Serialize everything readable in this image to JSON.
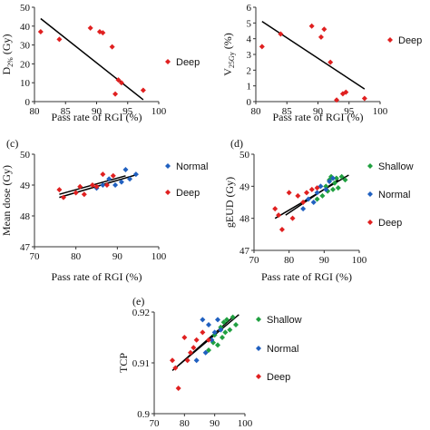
{
  "chart_data": [
    {
      "id": "a",
      "panel_label": "",
      "type": "scatter",
      "xlabel": "Pass rate of RGI (%)",
      "ylabel": "D",
      "ylabel_sub": "2%",
      "ylabel_unit": " (Gy)",
      "xlim": [
        80,
        100
      ],
      "ylim": [
        0,
        50
      ],
      "xticks": [
        80,
        85,
        90,
        95,
        100
      ],
      "yticks": [
        0,
        10,
        20,
        30,
        40,
        50
      ],
      "tick_labels_x": [
        "80",
        "85",
        "90",
        "95",
        "100"
      ],
      "tick_labels_y": [
        "0",
        "10",
        "20",
        "30",
        "40",
        "50"
      ],
      "series": [
        {
          "name": "Deep",
          "color": "#e02020",
          "x": [
            81,
            84,
            89,
            90.5,
            91,
            92.5,
            93,
            93.5,
            94,
            97.5
          ],
          "y": [
            37,
            33,
            39,
            37,
            36.5,
            29,
            4,
            11.5,
            10,
            6
          ]
        }
      ],
      "trendlines": [
        {
          "x": [
            81,
            97.5
          ],
          "y": [
            44,
            1
          ]
        }
      ],
      "legend_position": "right"
    },
    {
      "id": "b",
      "panel_label": "",
      "type": "scatter",
      "xlabel": "Pass rate of RGI (%)",
      "ylabel": "V",
      "ylabel_sub": "25Gy",
      "ylabel_unit": " (%)",
      "xlim": [
        80,
        100
      ],
      "ylim": [
        0,
        6
      ],
      "xticks": [
        80,
        85,
        90,
        95,
        100
      ],
      "yticks": [
        0,
        1,
        2,
        3,
        4,
        5,
        6
      ],
      "tick_labels_x": [
        "80",
        "85",
        "90",
        "95",
        "100"
      ],
      "tick_labels_y": [
        "0",
        "1",
        "2",
        "3",
        "4",
        "5",
        "6"
      ],
      "series": [
        {
          "name": "Deep",
          "color": "#e02020",
          "x": [
            81,
            84,
            89,
            90.5,
            91,
            92,
            93,
            94,
            94.5,
            97.5
          ],
          "y": [
            3.5,
            4.3,
            4.8,
            4.1,
            4.6,
            2.5,
            0.1,
            0.5,
            0.6,
            0.2
          ]
        }
      ],
      "trendlines": [
        {
          "x": [
            81,
            97.5
          ],
          "y": [
            5.1,
            0.8
          ]
        }
      ],
      "legend_position": "right"
    },
    {
      "id": "c",
      "panel_label": "(c)",
      "type": "scatter",
      "xlabel": "Pass rate of RGI (%)",
      "ylabel": "Mean dose (Gy)",
      "ylabel_sub": "",
      "ylabel_unit": "",
      "xlim": [
        70,
        100
      ],
      "ylim": [
        47,
        50
      ],
      "xticks": [
        70,
        80,
        90,
        100
      ],
      "yticks": [
        47,
        48,
        49,
        50
      ],
      "tick_labels_x": [
        "70",
        "80",
        "90",
        "100"
      ],
      "tick_labels_y": [
        "47",
        "48",
        "49",
        "50"
      ],
      "series": [
        {
          "name": "Normal",
          "color": "#2060c0",
          "x": [
            85,
            86.5,
            88,
            89.5,
            91,
            92,
            93,
            94.5
          ],
          "y": [
            48.9,
            49.0,
            49.2,
            49.0,
            49.1,
            49.5,
            49.2,
            49.35
          ]
        },
        {
          "name": "Deep",
          "color": "#e02020",
          "x": [
            76,
            77,
            80,
            81,
            82,
            84,
            85,
            86.5,
            87.5,
            89
          ],
          "y": [
            48.85,
            48.6,
            48.75,
            48.95,
            48.7,
            49.0,
            48.95,
            49.35,
            49.0,
            49.3
          ]
        }
      ],
      "trendlines": [
        {
          "x": [
            76,
            95
          ],
          "y": [
            48.6,
            49.35
          ]
        },
        {
          "x": [
            76,
            92
          ],
          "y": [
            48.7,
            49.3
          ]
        }
      ],
      "legend_position": "right"
    },
    {
      "id": "d",
      "panel_label": "(d)",
      "type": "scatter",
      "xlabel": "Pass rate of RGI (%)",
      "ylabel": "gEUD (Gy)",
      "ylabel_sub": "",
      "ylabel_unit": "",
      "xlim": [
        70,
        100
      ],
      "ylim": [
        47,
        50
      ],
      "xticks": [
        70,
        80,
        90,
        100
      ],
      "yticks": [
        47,
        48,
        49,
        50
      ],
      "tick_labels_x": [
        "70",
        "80",
        "90",
        "100"
      ],
      "tick_labels_y": [
        "47",
        "48",
        "49",
        "50"
      ],
      "series": [
        {
          "name": "Shallow",
          "color": "#20a040",
          "x": [
            88,
            89.5,
            90.5,
            91,
            91.5,
            92,
            92.5,
            93,
            93.5,
            94,
            95,
            96
          ],
          "y": [
            48.6,
            48.7,
            49.0,
            48.85,
            49.2,
            49.3,
            48.9,
            49.1,
            49.25,
            48.95,
            49.3,
            49.2
          ]
        },
        {
          "name": "Normal",
          "color": "#2060c0",
          "x": [
            84,
            85.5,
            87,
            88,
            89,
            90.5,
            91.5,
            92.5
          ],
          "y": [
            48.3,
            48.6,
            48.5,
            48.8,
            49.0,
            48.9,
            49.15,
            49.25
          ]
        },
        {
          "name": "Deep",
          "color": "#e02020",
          "x": [
            76,
            77,
            78,
            80,
            81,
            82.5,
            84,
            85,
            86.5,
            88
          ],
          "y": [
            48.3,
            48.1,
            47.65,
            48.8,
            48.0,
            48.7,
            48.5,
            48.8,
            48.9,
            48.95
          ]
        }
      ],
      "trendlines": [
        {
          "x": [
            76,
            97
          ],
          "y": [
            48.0,
            49.35
          ]
        },
        {
          "x": [
            79,
            94
          ],
          "y": [
            48.1,
            49.2
          ]
        }
      ],
      "legend_position": "right"
    },
    {
      "id": "e",
      "panel_label": "(e)",
      "type": "scatter",
      "xlabel": "",
      "ylabel": "TCP",
      "ylabel_sub": "",
      "ylabel_unit": "",
      "xlim": [
        70,
        100
      ],
      "ylim": [
        0.9,
        0.92
      ],
      "xticks": [
        70,
        80,
        90,
        100
      ],
      "yticks": [
        0.9,
        0.91,
        0.92
      ],
      "tick_labels_x": [
        "70",
        "80",
        "90",
        "100"
      ],
      "tick_labels_y": [
        "0.9",
        "0.91",
        "0.92"
      ],
      "series": [
        {
          "name": "Shallow",
          "color": "#20a040",
          "x": [
            88,
            89.5,
            90,
            91,
            92,
            92.5,
            93,
            93.5,
            94,
            95,
            96,
            97
          ],
          "y": [
            0.9125,
            0.914,
            0.9155,
            0.9135,
            0.917,
            0.915,
            0.918,
            0.916,
            0.9185,
            0.9165,
            0.919,
            0.9175
          ]
        },
        {
          "name": "Normal",
          "color": "#2060c0",
          "x": [
            84,
            86,
            87,
            88,
            89,
            90,
            91,
            92
          ],
          "y": [
            0.9105,
            0.9185,
            0.912,
            0.9175,
            0.9145,
            0.916,
            0.9185,
            0.9165
          ]
        },
        {
          "name": "Deep",
          "color": "#e02020",
          "x": [
            76,
            77,
            78,
            80,
            81,
            82,
            83,
            84,
            86,
            88
          ],
          "y": [
            0.9105,
            0.909,
            0.905,
            0.915,
            0.9105,
            0.912,
            0.913,
            0.9145,
            0.916,
            0.9145
          ]
        }
      ],
      "trendlines": [
        {
          "x": [
            76,
            98
          ],
          "y": [
            0.9085,
            0.9195
          ]
        },
        {
          "x": [
            78,
            96
          ],
          "y": [
            0.9095,
            0.919
          ]
        }
      ],
      "legend_position": "right"
    }
  ]
}
